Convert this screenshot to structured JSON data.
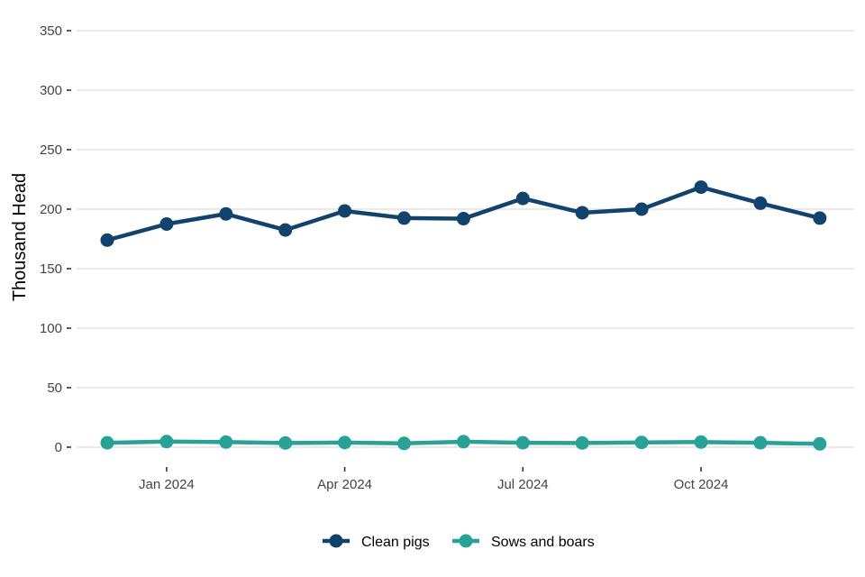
{
  "chart_data": {
    "type": "line",
    "ylabel": "Thousand Head",
    "xlabel": "",
    "title": "",
    "x": [
      "2023-12",
      "2024-01",
      "2024-02",
      "2024-03",
      "2024-04",
      "2024-05",
      "2024-06",
      "2024-07",
      "2024-08",
      "2024-09",
      "2024-10",
      "2024-11",
      "2024-12"
    ],
    "x_ticks": [
      {
        "date": "2024-01",
        "label": "Jan 2024"
      },
      {
        "date": "2024-04",
        "label": "Apr 2024"
      },
      {
        "date": "2024-07",
        "label": "Jul 2024"
      },
      {
        "date": "2024-10",
        "label": "Oct 2024"
      }
    ],
    "y_ticks": [
      "0",
      "50",
      "100",
      "150",
      "200",
      "250",
      "300",
      "350"
    ],
    "ylim": [
      0,
      350
    ],
    "grid": true,
    "legend_position": "bottom",
    "series": [
      {
        "name": "Clean pigs",
        "color": "#12436d",
        "values": [
          174,
          187.5,
          196,
          182.5,
          198.5,
          192.5,
          192,
          209,
          197,
          200,
          218.5,
          205,
          192.5
        ]
      },
      {
        "name": "Sows and boars",
        "color": "#28a197",
        "values": [
          3.7,
          4.7,
          4.3,
          3.5,
          3.9,
          3.2,
          4.6,
          3.7,
          3.5,
          4.0,
          4.3,
          3.7,
          2.8
        ]
      }
    ]
  }
}
